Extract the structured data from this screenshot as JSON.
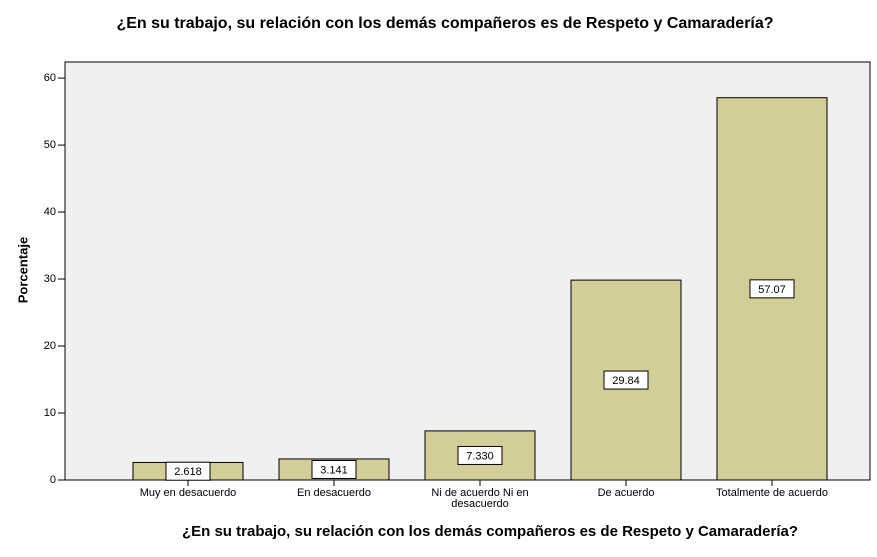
{
  "chart_data": {
    "type": "bar",
    "title": "¿En su trabajo, su relación con los demás compañeros es de Respeto y Camaradería?",
    "x_label": "¿En su trabajo, su relación con los demás compañeros es de Respeto y Camaradería?",
    "y_label": "Porcentaje",
    "categories": [
      "Muy en desacuerdo",
      "En desacuerdo",
      "Ni de acuerdo Ni en desacuerdo",
      "De acuerdo",
      "Totalmente de acuerdo"
    ],
    "values": [
      2.618,
      3.141,
      7.33,
      29.84,
      57.07
    ],
    "value_labels": [
      "2.618",
      "3.141",
      "7.330",
      "29.84",
      "57.07"
    ],
    "color": "#d3ce97",
    "ylim": [
      0,
      62.4
    ],
    "yticks": [
      0,
      10,
      20,
      30,
      40,
      50,
      60
    ]
  }
}
